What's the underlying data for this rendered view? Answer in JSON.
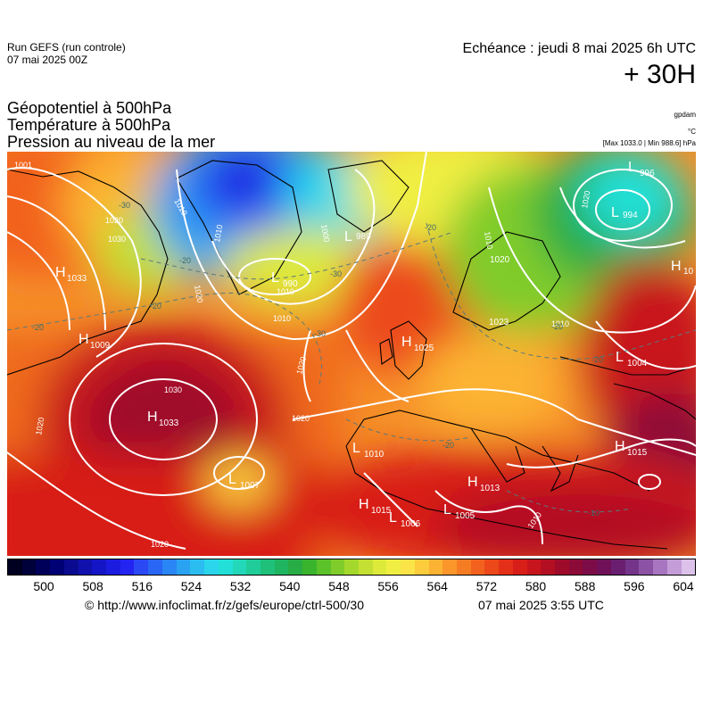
{
  "header": {
    "run_label": "Run GEFS (run controle)",
    "run_date": "07 mai 2025 00Z",
    "echeance": "Echéance : jeudi 8 mai 2025 6h UTC",
    "lead": "+ 30H"
  },
  "titles": {
    "line1": "Géopotentiel à 500hPa",
    "line2": "Température à 500hPa",
    "line3": "Pression au niveau de la mer"
  },
  "units": {
    "geopotential": "gpdam",
    "temperature": "°C",
    "pressure_info": "[Max 1033.0 | Min 988.6] hPa"
  },
  "footer": {
    "credit": "© http://www.infoclimat.fr/z/gefs/europe/ctrl-500/30",
    "generated": "07 mai 2025  3:55 UTC"
  },
  "colorbar": {
    "colors": [
      "#000020",
      "#00003a",
      "#000058",
      "#000075",
      "#0a0a90",
      "#1010ad",
      "#1515c8",
      "#1c1ce0",
      "#2424f2",
      "#2b48f5",
      "#2a66f5",
      "#2a85f5",
      "#2aa2f2",
      "#2bbdf0",
      "#2bd6ec",
      "#22e0d8",
      "#22d8b8",
      "#20cc98",
      "#1ec07a",
      "#1fb560",
      "#28ac45",
      "#3ab42d",
      "#5cc22a",
      "#80cc2a",
      "#a4d82c",
      "#c4e032",
      "#ddea3a",
      "#f0ee42",
      "#fae448",
      "#fccc3c",
      "#fcb232",
      "#fa962a",
      "#f67c24",
      "#f2621e",
      "#ec481a",
      "#e43018",
      "#d81e18",
      "#c8141c",
      "#b40e22",
      "#9e0a2a",
      "#8c0a38",
      "#7c0c48",
      "#701058",
      "#6a1e70",
      "#74348a",
      "#8c52a4",
      "#a876c0",
      "#c49cd8",
      "#dcc2ea"
    ],
    "ticks": [
      "500",
      "508",
      "516",
      "524",
      "532",
      "540",
      "548",
      "556",
      "564",
      "572",
      "580",
      "588",
      "596",
      "604"
    ]
  },
  "map_labels": {
    "highs": [
      {
        "letter": "H",
        "value": "1033"
      },
      {
        "letter": "H",
        "value": "1009"
      },
      {
        "letter": "H",
        "value": "1033"
      },
      {
        "letter": "H",
        "value": "1025"
      },
      {
        "letter": "H",
        "value": "1015"
      },
      {
        "letter": "H",
        "value": "1013"
      },
      {
        "letter": "H",
        "value": "1015"
      },
      {
        "letter": "H",
        "value": "10"
      }
    ],
    "lows": [
      {
        "letter": "L",
        "value": "990"
      },
      {
        "letter": "L",
        "value": "989"
      },
      {
        "letter": "L",
        "value": "996"
      },
      {
        "letter": "L",
        "value": "994"
      },
      {
        "letter": "L",
        "value": "1007"
      },
      {
        "letter": "L",
        "value": "1010"
      },
      {
        "letter": "L",
        "value": "1006"
      },
      {
        "letter": "L",
        "value": "1005"
      },
      {
        "letter": "L",
        "value": "1004"
      },
      {
        "letter": "L",
        "value": "1020"
      },
      {
        "letter": "L",
        "value": "1023"
      }
    ],
    "isobars": [
      "1001",
      "1010",
      "1020",
      "1030",
      "1000",
      "1010",
      "1020",
      "1010",
      "1020",
      "1030",
      "1020",
      "1020",
      "1020",
      "1010",
      "1010",
      "1020",
      "1010",
      "1010"
    ],
    "isotherms": [
      "-30",
      "-20",
      "-20",
      "-30",
      "-20",
      "-30",
      "-20",
      "-20",
      "-20",
      "-20",
      "-10"
    ]
  }
}
